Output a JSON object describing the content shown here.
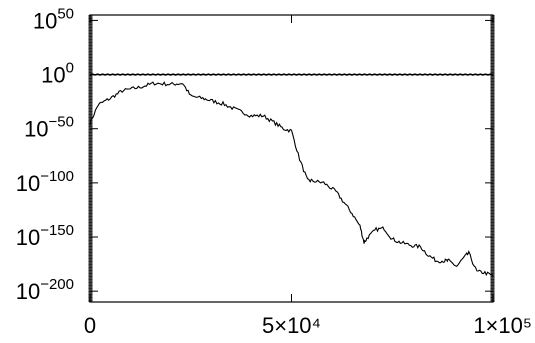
{
  "chart_data": {
    "type": "line",
    "title": "",
    "xlabel": "",
    "ylabel": "",
    "xlim": [
      0,
      100000
    ],
    "ylim_log10": [
      -210,
      55
    ],
    "y_scale": "log",
    "grid": false,
    "x_ticks": [
      {
        "value": 0,
        "label": "0"
      },
      {
        "value": 50000,
        "label": "5×10⁴"
      },
      {
        "value": 100000,
        "label": "1×10⁵"
      }
    ],
    "y_ticks": [
      {
        "exp": 50,
        "base": "10",
        "sup": "50"
      },
      {
        "exp": 0,
        "base": "10",
        "sup": "0"
      },
      {
        "exp": -50,
        "base": "10",
        "sup": "−50"
      },
      {
        "exp": -100,
        "base": "10",
        "sup": "−100"
      },
      {
        "exp": -150,
        "base": "10",
        "sup": "−150"
      },
      {
        "exp": -200,
        "base": "10",
        "sup": "−200"
      }
    ],
    "series": [
      {
        "style": "flat",
        "x": [
          0,
          100000
        ],
        "log10_y": [
          0,
          0
        ]
      },
      {
        "style": "noisy",
        "x": [
          0,
          2000,
          5000,
          8000,
          12000,
          16000,
          20000,
          23000,
          25000,
          28000,
          30000,
          33000,
          36000,
          40000,
          43000,
          46000,
          48000,
          50000,
          52000,
          54000,
          55000,
          58000,
          61000,
          63000,
          65000,
          67000,
          68000,
          69000,
          71000,
          73000,
          75000,
          77000,
          80000,
          82000,
          84000,
          86000,
          88000,
          89000,
          91000,
          93000,
          94000,
          96000,
          98000,
          100000
        ],
        "log10_y": [
          -45,
          -28,
          -22,
          -15,
          -12,
          -8,
          -9,
          -8,
          -20,
          -22,
          -24,
          -27,
          -32,
          -38,
          -38,
          -45,
          -50,
          -52,
          -78,
          -98,
          -98,
          -100,
          -108,
          -118,
          -128,
          -140,
          -155,
          -150,
          -143,
          -142,
          -152,
          -155,
          -158,
          -159,
          -167,
          -172,
          -172,
          -172,
          -177,
          -168,
          -165,
          -182,
          -183,
          -186
        ]
      }
    ]
  }
}
